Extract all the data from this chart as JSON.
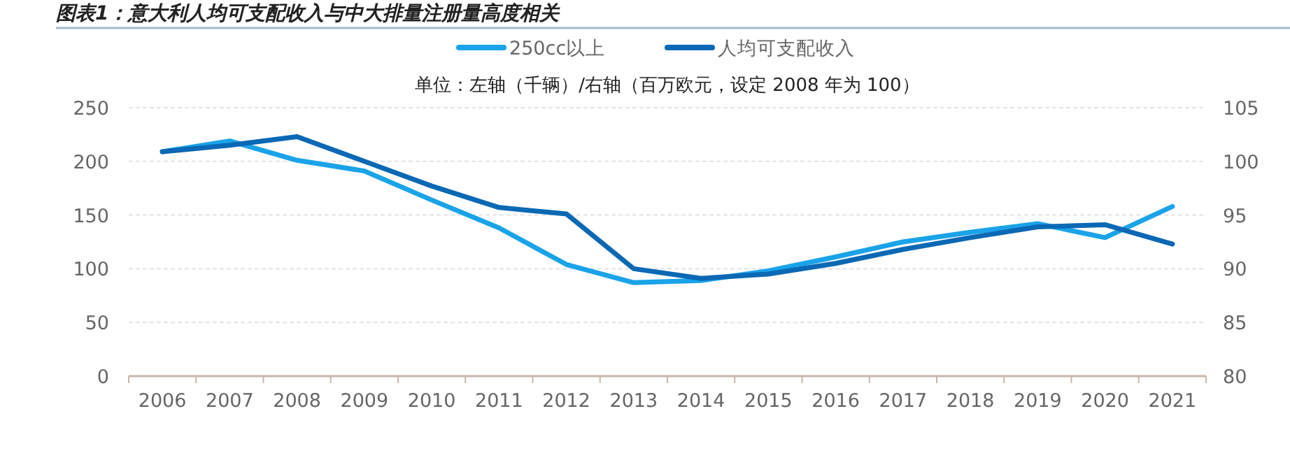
{
  "chart_data": {
    "type": "line",
    "title": "图表1：意大利人均可支配收入与中大排量注册量高度相关",
    "subtitle": "单位：左轴（千辆）/右轴（百万欧元，设定 2008 年为 100）",
    "categories": [
      "2006",
      "2007",
      "2008",
      "2009",
      "2010",
      "2011",
      "2012",
      "2013",
      "2014",
      "2015",
      "2016",
      "2017",
      "2018",
      "2019",
      "2020",
      "2021"
    ],
    "series": [
      {
        "name": "250cc以上",
        "color": "#1aa3e8",
        "values": [
          209,
          219,
          201,
          191,
          164,
          138,
          104,
          87,
          89,
          98,
          111,
          125,
          134,
          142,
          129,
          158
        ]
      },
      {
        "name": "人均可支配收入",
        "color": "#0a68b4",
        "axis": "y2",
        "values": [
          100.9,
          101.5,
          102.3,
          100.0,
          97.7,
          95.7,
          95.1,
          90.0,
          89.1,
          89.5,
          90.5,
          91.8,
          92.9,
          93.9,
          94.1,
          92.3
        ]
      }
    ],
    "ylim": [
      0,
      250
    ],
    "yticks": [
      0,
      50,
      100,
      150,
      200,
      250
    ],
    "y2lim": [
      80,
      105
    ],
    "y2ticks": [
      80,
      85,
      90,
      95,
      100,
      105
    ],
    "grid": "y",
    "legend": "top",
    "marker": "none",
    "line_style": "solid"
  }
}
